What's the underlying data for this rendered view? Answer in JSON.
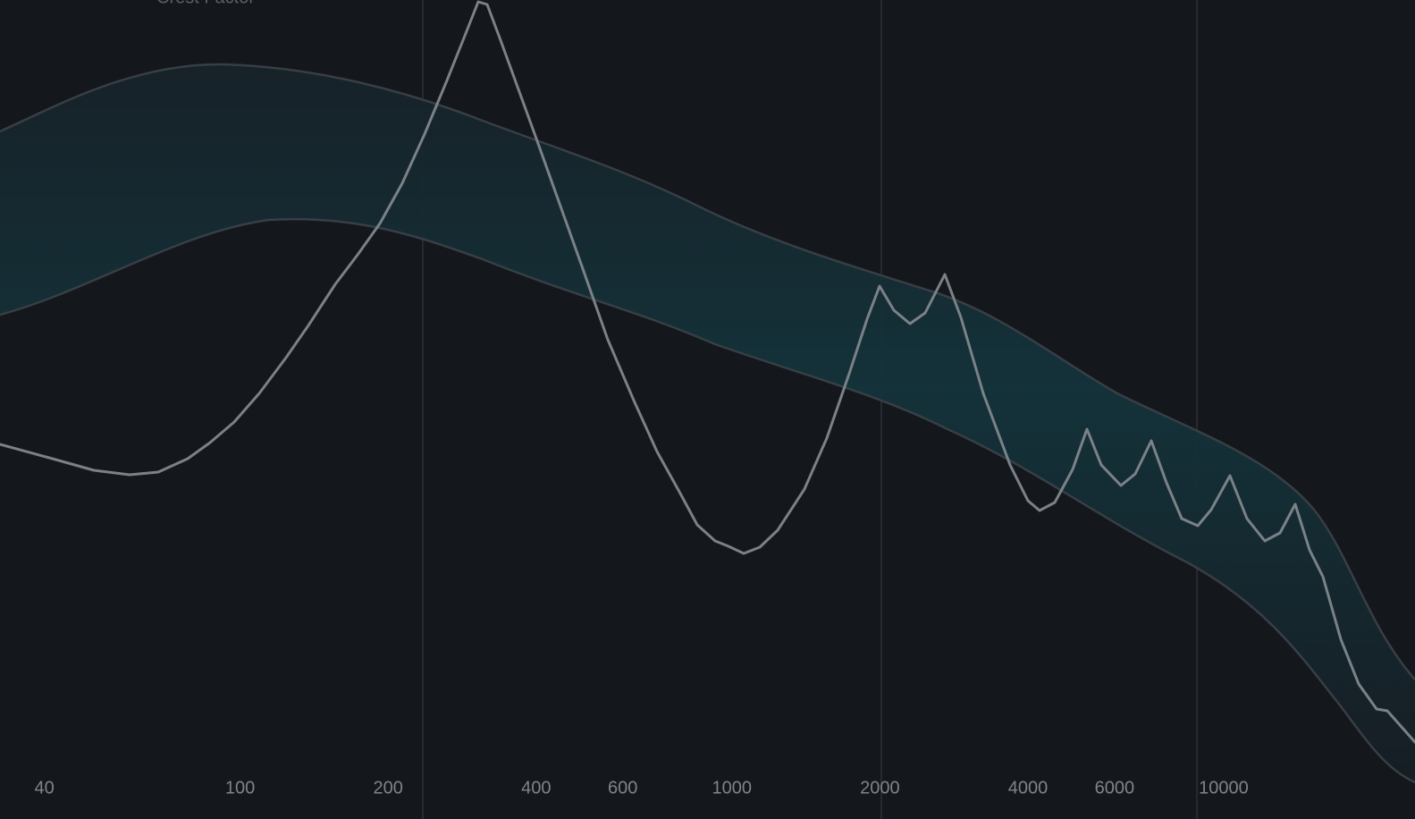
{
  "overlay": {
    "label": "Crest Factor"
  },
  "frequency_axis": {
    "scale": "log",
    "range": [
      32.5,
      24500
    ],
    "ticks": [
      40,
      100,
      200,
      400,
      600,
      1000,
      2000,
      4000,
      6000,
      10000
    ]
  }
}
